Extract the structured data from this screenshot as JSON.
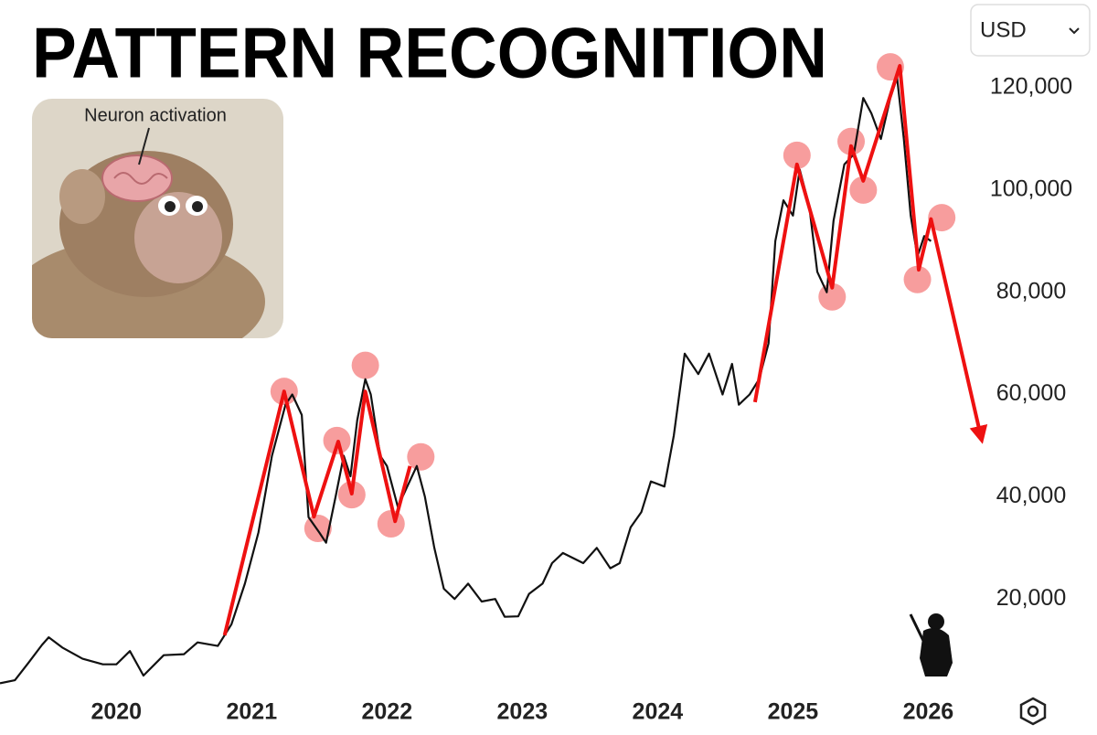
{
  "chart_data": {
    "type": "line",
    "title": "PATTERN RECOGNITION",
    "inset_caption": "Neuron activation",
    "currency": "USD",
    "xlim": [
      2019.14,
      2026.45
    ],
    "xticks": [
      2020,
      2021,
      2022,
      2023,
      2024,
      2025,
      2026
    ],
    "ylim": [
      0,
      137000
    ],
    "yticks": [
      {
        "value": 20000,
        "label": "20,000"
      },
      {
        "value": 40000,
        "label": "40,000"
      },
      {
        "value": 60000,
        "label": "60,000"
      },
      {
        "value": 80000,
        "label": "80,000"
      },
      {
        "value": 100000,
        "label": "100,000"
      },
      {
        "value": 120000,
        "label": "120,000"
      }
    ],
    "grid": false,
    "price": {
      "color": "#111111",
      "x": [
        2019.14,
        2019.25,
        2019.35,
        2019.45,
        2019.5,
        2019.6,
        2019.75,
        2019.9,
        2020.0,
        2020.1,
        2020.2,
        2020.35,
        2020.5,
        2020.6,
        2020.75,
        2020.85,
        2020.95,
        2021.05,
        2021.15,
        2021.25,
        2021.3,
        2021.37,
        2021.42,
        2021.5,
        2021.55,
        2021.62,
        2021.68,
        2021.73,
        2021.78,
        2021.84,
        2021.88,
        2021.95,
        2022.0,
        2022.08,
        2022.15,
        2022.22,
        2022.28,
        2022.35,
        2022.42,
        2022.5,
        2022.6,
        2022.7,
        2022.8,
        2022.87,
        2022.97,
        2023.05,
        2023.15,
        2023.22,
        2023.3,
        2023.45,
        2023.55,
        2023.65,
        2023.72,
        2023.8,
        2023.88,
        2023.95,
        2024.05,
        2024.12,
        2024.2,
        2024.3,
        2024.38,
        2024.48,
        2024.55,
        2024.6,
        2024.68,
        2024.75,
        2024.82,
        2024.87,
        2024.93,
        2025.0,
        2025.05,
        2025.12,
        2025.18,
        2025.25,
        2025.3,
        2025.38,
        2025.45,
        2025.52,
        2025.58,
        2025.65,
        2025.72,
        2025.77,
        2025.82,
        2025.87,
        2025.92,
        2025.97,
        2026.02
      ],
      "values": [
        3500,
        4100,
        7500,
        11000,
        12500,
        10500,
        8300,
        7200,
        7200,
        9800,
        5000,
        9000,
        9200,
        11500,
        10800,
        15000,
        23000,
        33000,
        48000,
        58000,
        60000,
        56000,
        36000,
        33000,
        31000,
        40000,
        48000,
        44000,
        55000,
        63000,
        60000,
        48000,
        46000,
        38000,
        42000,
        46000,
        40000,
        30000,
        22000,
        20000,
        23000,
        19500,
        20000,
        16500,
        16600,
        21000,
        23000,
        27000,
        29000,
        27000,
        30000,
        26000,
        27000,
        34000,
        37000,
        43000,
        42000,
        52000,
        68000,
        64000,
        68000,
        60000,
        66000,
        58000,
        60000,
        63000,
        70000,
        90000,
        98000,
        95000,
        104000,
        97000,
        84000,
        80000,
        94000,
        105000,
        107000,
        118000,
        115000,
        110000,
        118000,
        122000,
        110000,
        95000,
        87000,
        91000,
        90000
      ]
    },
    "pattern": {
      "color": "#ee1111",
      "x": [
        2020.8,
        2021.24,
        2021.46,
        2021.64,
        2021.74,
        2021.84,
        2022.06,
        2022.17,
        null,
        2024.72,
        2025.03,
        2025.29,
        2025.43,
        2025.52,
        2025.79,
        2025.93,
        2026.02,
        2026.39
      ],
      "values": [
        12900,
        60600,
        36100,
        50800,
        40600,
        60600,
        35200,
        46000,
        null,
        58500,
        105000,
        80900,
        108600,
        101800,
        124300,
        84400,
        94300,
        51700
      ]
    },
    "highlights": {
      "color": "#f47c7c",
      "x": [
        2021.24,
        2021.49,
        2021.63,
        2021.74,
        2021.84,
        2022.03,
        2022.25,
        2025.03,
        2025.29,
        2025.43,
        2025.52,
        2025.72,
        2025.92,
        2026.1
      ],
      "values": [
        60600,
        33800,
        51000,
        40400,
        65700,
        34700,
        47800,
        106800,
        79100,
        109500,
        100000,
        124100,
        82500,
        94600
      ]
    }
  }
}
